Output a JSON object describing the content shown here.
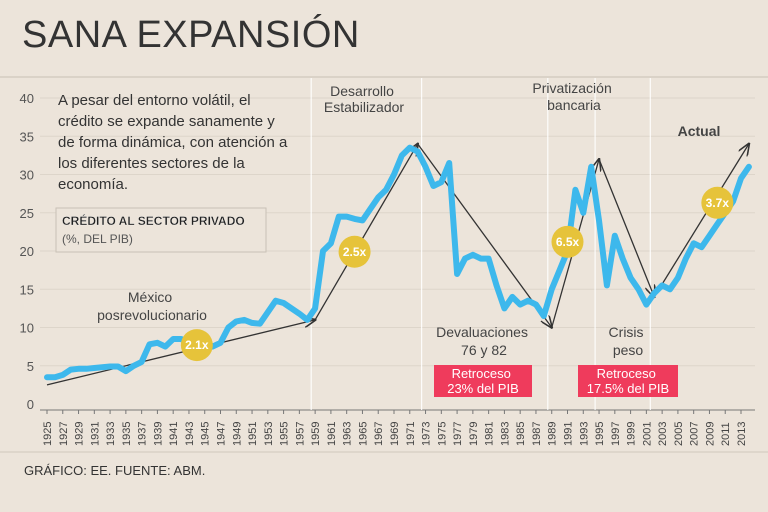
{
  "title": "SANA EXPANSIÓN",
  "intro": [
    "A pesar del entorno volátil, el",
    "crédito se expande sanamente y",
    "de forma dinámica, con atención a",
    "los diferentes sectores de la",
    "economía."
  ],
  "legend": {
    "title": "CRÉDITO AL SECTOR PRIVADO",
    "subtitle": "(%, DEL PIB)"
  },
  "eras": [
    {
      "lines": [
        "México",
        "posrevolucionario"
      ]
    },
    {
      "lines": [
        "Desarrollo",
        "Estabilizador"
      ]
    },
    {
      "lines": [
        "Devaluaciones",
        "76 y 82"
      ]
    },
    {
      "lines": [
        "Privatización",
        "bancaria"
      ]
    },
    {
      "lines": [
        "Crisis",
        "peso"
      ]
    },
    {
      "lines": [
        "Actual"
      ]
    }
  ],
  "retrocesos": [
    {
      "lines": [
        "Retroceso",
        "23% del PIB"
      ]
    },
    {
      "lines": [
        "Retroceso",
        "17.5% del PIB"
      ]
    }
  ],
  "multipliers": [
    "2.1x",
    "2.5x",
    "6.5x",
    "3.7x"
  ],
  "footer": "GRÁFICO: EE. FUENTE: ABM.",
  "colors": {
    "line": "#3db8ec",
    "badge": "#e6c33a",
    "retroceso": "#ef3b5c",
    "background": "#ece4da"
  },
  "chart_data": {
    "type": "line",
    "title": "CRÉDITO AL SECTOR PRIVADO",
    "ylabel": "(%, DEL PIB)",
    "ylim": [
      0,
      40
    ],
    "yticks": [
      0,
      5,
      10,
      15,
      20,
      25,
      30,
      35,
      40
    ],
    "xlim": [
      1925,
      2014
    ],
    "xticks": [
      1925,
      1927,
      1929,
      1931,
      1933,
      1935,
      1937,
      1939,
      1941,
      1943,
      1945,
      1947,
      1949,
      1951,
      1953,
      1955,
      1957,
      1959,
      1961,
      1963,
      1965,
      1967,
      1969,
      1971,
      1973,
      1975,
      1977,
      1979,
      1981,
      1983,
      1985,
      1987,
      1989,
      1991,
      1993,
      1995,
      1997,
      1999,
      2001,
      2003,
      2005,
      2007,
      2009,
      2011,
      2013
    ],
    "era_dividers": [
      1958.5,
      1972.5,
      1988.5,
      1994.5,
      2001.5
    ],
    "series": [
      {
        "name": "Crédito al sector privado (% del PIB)",
        "x": [
          1925,
          1926,
          1927,
          1928,
          1929,
          1930,
          1931,
          1932,
          1933,
          1934,
          1935,
          1936,
          1937,
          1938,
          1939,
          1940,
          1941,
          1942,
          1943,
          1944,
          1945,
          1946,
          1947,
          1948,
          1949,
          1950,
          1951,
          1952,
          1953,
          1954,
          1955,
          1956,
          1957,
          1958,
          1959,
          1960,
          1961,
          1962,
          1963,
          1964,
          1965,
          1966,
          1967,
          1968,
          1969,
          1970,
          1971,
          1972,
          1973,
          1974,
          1975,
          1976,
          1977,
          1978,
          1979,
          1980,
          1981,
          1982,
          1983,
          1984,
          1985,
          1986,
          1987,
          1988,
          1989,
          1990,
          1991,
          1992,
          1993,
          1994,
          1995,
          1996,
          1997,
          1998,
          1999,
          2000,
          2001,
          2002,
          2003,
          2004,
          2005,
          2006,
          2007,
          2008,
          2009,
          2010,
          2011,
          2012,
          2013,
          2014
        ],
        "values": [
          3.5,
          3.5,
          3.8,
          4.5,
          4.6,
          4.6,
          4.7,
          4.8,
          4.9,
          4.9,
          4.3,
          5.0,
          5.5,
          7.8,
          8.0,
          7.5,
          8.5,
          8.5,
          8.0,
          7.8,
          8.2,
          7.5,
          8.0,
          10.0,
          10.8,
          11.0,
          10.6,
          10.5,
          12.0,
          13.5,
          13.2,
          12.5,
          11.8,
          11.0,
          12.5,
          20.0,
          21.0,
          24.5,
          24.5,
          24.2,
          24.0,
          25.5,
          27.0,
          28.0,
          30.0,
          32.5,
          33.5,
          33.0,
          31.0,
          28.5,
          29.0,
          31.5,
          17.0,
          19.0,
          19.5,
          19.0,
          19.0,
          15.5,
          12.5,
          14.0,
          13.0,
          13.5,
          13.0,
          11.5,
          15.0,
          17.5,
          20.0,
          28.0,
          25.0,
          31.0,
          24.0,
          15.5,
          22.0,
          19.0,
          16.5,
          15.0,
          13.0,
          14.5,
          15.5,
          15.0,
          16.5,
          19.0,
          21.0,
          20.5,
          22.0,
          23.5,
          25.0,
          26.5,
          29.5,
          31.0
        ]
      }
    ],
    "trend_arrows": [
      {
        "from": [
          1925,
          2.5
        ],
        "to": [
          1959,
          11.0
        ],
        "label": "2.1x"
      },
      {
        "from": [
          1959,
          11.0
        ],
        "to": [
          1972,
          34.0
        ],
        "label": "2.5x"
      },
      {
        "from": [
          1972,
          34.0
        ],
        "to": [
          1989,
          10.0
        ],
        "label": "23% del PIB"
      },
      {
        "from": [
          1989,
          10.0
        ],
        "to": [
          1995,
          32.0
        ],
        "label": "6.5x"
      },
      {
        "from": [
          1995,
          32.0
        ],
        "to": [
          2002,
          14.0
        ],
        "label": "17.5% del PIB"
      },
      {
        "from": [
          2002,
          14.0
        ],
        "to": [
          2014,
          34.0
        ],
        "label": "3.7x"
      }
    ]
  }
}
